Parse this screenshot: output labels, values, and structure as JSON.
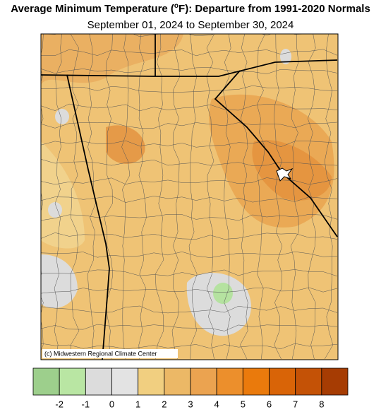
{
  "header": {
    "title_start": "Average Minimum Temperature (",
    "title_degree": "o",
    "title_end": "F): Departure from 1991-2020 Normals",
    "subtitle": "September 01, 2024 to September 30, 2024"
  },
  "map": {
    "credit": "(c) Midwestern Regional Climate Center"
  },
  "legend": {
    "ticks": [
      -2,
      -1,
      0,
      1,
      2,
      3,
      4,
      5,
      6,
      7,
      8
    ],
    "colors": [
      "#9dcf8c",
      "#b9e6a3",
      "#dcdcdc",
      "#e3e3e3",
      "#f1cf80",
      "#ecb866",
      "#eba350",
      "#ec8f2c",
      "#ea7a0c",
      "#d96407",
      "#c45206",
      "#a63c03"
    ]
  }
}
